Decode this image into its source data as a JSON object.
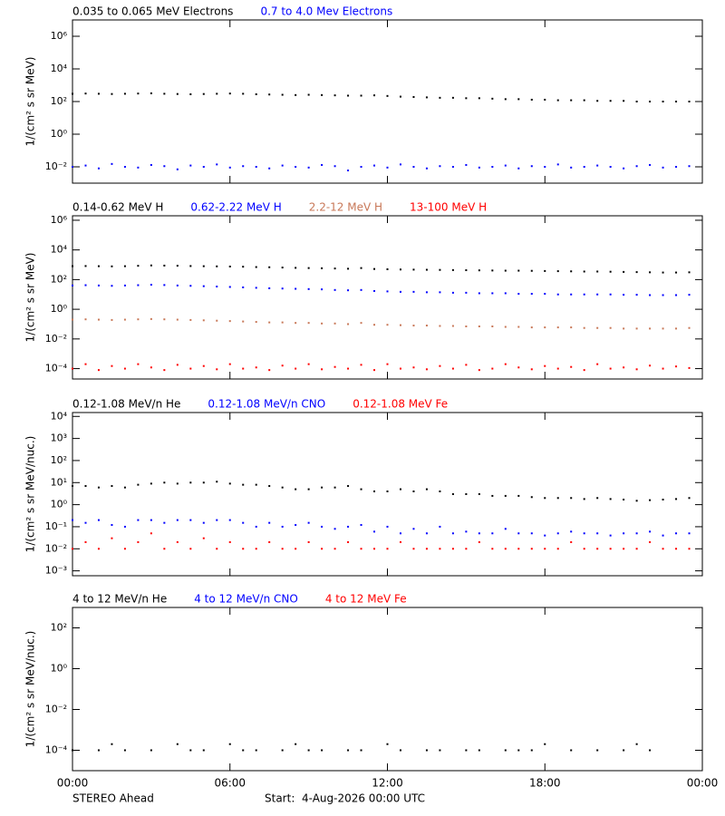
{
  "chart_data": [
    {
      "type": "scatter",
      "yscale": "log",
      "ylabel": "1/(cm² s sr MeV)",
      "x": [
        0,
        0.5,
        1,
        1.5,
        2,
        2.5,
        3,
        3.5,
        4,
        4.5,
        5,
        5.5,
        6,
        6.5,
        7,
        7.5,
        8,
        8.5,
        9,
        9.5,
        10,
        10.5,
        11,
        11.5,
        12,
        12.5,
        13,
        13.5,
        14,
        14.5,
        15,
        15.5,
        16,
        16.5,
        17,
        17.5,
        18,
        18.5,
        19,
        19.5,
        20,
        20.5,
        21,
        21.5,
        22,
        22.5,
        23,
        23.5
      ],
      "xlim": [
        0,
        24
      ],
      "xticks": [
        0,
        6,
        12,
        18,
        24
      ],
      "ylim": [
        0.001,
        10000000
      ],
      "yticks": [
        {
          "value": 0.01,
          "label": "10⁻²"
        },
        {
          "value": 1,
          "label": "10⁰"
        },
        {
          "value": 100,
          "label": "10²"
        },
        {
          "value": 10000,
          "label": "10⁴"
        },
        {
          "value": 1000000,
          "label": "10⁶"
        }
      ],
      "series": [
        {
          "name": "0.035 to 0.065 MeV Electrons",
          "color": "#000000",
          "values": [
            300,
            310,
            300,
            290,
            300,
            310,
            320,
            300,
            290,
            280,
            290,
            300,
            310,
            300,
            280,
            270,
            260,
            250,
            260,
            250,
            240,
            230,
            230,
            240,
            220,
            200,
            190,
            180,
            170,
            170,
            160,
            160,
            150,
            140,
            140,
            130,
            130,
            120,
            120,
            120,
            110,
            110,
            110,
            100,
            100,
            100,
            100,
            100
          ]
        },
        {
          "name": "0.7 to 4.0 Mev Electrons",
          "color": "#0000ff",
          "values": [
            0.01,
            0.012,
            0.008,
            0.015,
            0.01,
            0.009,
            0.013,
            0.011,
            0.007,
            0.012,
            0.01,
            0.014,
            0.009,
            0.011,
            0.01,
            0.008,
            0.012,
            0.01,
            0.009,
            0.013,
            0.011,
            0.006,
            0.01,
            0.012,
            0.009,
            0.014,
            0.01,
            0.008,
            0.011,
            0.01,
            0.013,
            0.009,
            0.01,
            0.012,
            0.008,
            0.011,
            0.01,
            0.014,
            0.009,
            0.01,
            0.012,
            0.01,
            0.008,
            0.011,
            0.013,
            0.009,
            0.01,
            0.011
          ]
        }
      ]
    },
    {
      "type": "scatter",
      "yscale": "log",
      "ylabel": "1/(cm² s sr MeV)",
      "x": [
        0,
        0.5,
        1,
        1.5,
        2,
        2.5,
        3,
        3.5,
        4,
        4.5,
        5,
        5.5,
        6,
        6.5,
        7,
        7.5,
        8,
        8.5,
        9,
        9.5,
        10,
        10.5,
        11,
        11.5,
        12,
        12.5,
        13,
        13.5,
        14,
        14.5,
        15,
        15.5,
        16,
        16.5,
        17,
        17.5,
        18,
        18.5,
        19,
        19.5,
        20,
        20.5,
        21,
        21.5,
        22,
        22.5,
        23,
        23.5
      ],
      "xlim": [
        0,
        24
      ],
      "xticks": [
        0,
        6,
        12,
        18,
        24
      ],
      "ylim": [
        2e-05,
        2000000
      ],
      "yticks": [
        {
          "value": 0.0001,
          "label": "10⁻⁴"
        },
        {
          "value": 0.01,
          "label": "10⁻²"
        },
        {
          "value": 1,
          "label": "10⁰"
        },
        {
          "value": 100,
          "label": "10²"
        },
        {
          "value": 10000,
          "label": "10⁴"
        },
        {
          "value": 1000000,
          "label": "10⁶"
        }
      ],
      "series": [
        {
          "name": "0.14-0.62 MeV H",
          "color": "#000000",
          "values": [
            800,
            820,
            800,
            780,
            800,
            850,
            900,
            880,
            860,
            820,
            800,
            780,
            760,
            740,
            700,
            680,
            650,
            620,
            600,
            580,
            560,
            540,
            600,
            520,
            500,
            480,
            470,
            460,
            450,
            440,
            430,
            420,
            410,
            400,
            400,
            390,
            380,
            370,
            360,
            350,
            350,
            340,
            330,
            320,
            310,
            300,
            300,
            310
          ]
        },
        {
          "name": "0.62-2.22 MeV H",
          "color": "#0000ff",
          "values": [
            40,
            42,
            40,
            38,
            40,
            42,
            45,
            43,
            40,
            38,
            36,
            34,
            32,
            30,
            28,
            26,
            25,
            24,
            23,
            22,
            20,
            19,
            20,
            17,
            16,
            15,
            15,
            14,
            14,
            13,
            13,
            12,
            12,
            12,
            11,
            11,
            11,
            10,
            10,
            10,
            10,
            10,
            9.5,
            9.5,
            9,
            9,
            9,
            9.5
          ]
        },
        {
          "name": "2.2-12 MeV H",
          "color": "#c87858",
          "values": [
            0.2,
            0.21,
            0.2,
            0.19,
            0.2,
            0.21,
            0.22,
            0.21,
            0.2,
            0.19,
            0.18,
            0.17,
            0.16,
            0.15,
            0.14,
            0.13,
            0.13,
            0.12,
            0.12,
            0.11,
            0.11,
            0.1,
            0.12,
            0.09,
            0.09,
            0.085,
            0.08,
            0.08,
            0.075,
            0.075,
            0.07,
            0.07,
            0.07,
            0.065,
            0.065,
            0.06,
            0.06,
            0.06,
            0.06,
            0.055,
            0.055,
            0.055,
            0.05,
            0.05,
            0.05,
            0.05,
            0.05,
            0.055
          ]
        },
        {
          "name": "13-100 MeV H",
          "color": "#ff0000",
          "values": [
            0.0001,
            0.0002,
            8e-05,
            0.00015,
            0.0001,
            0.0002,
            0.00012,
            8e-05,
            0.00018,
            0.0001,
            0.00015,
            9e-05,
            0.0002,
            0.0001,
            0.00012,
            8e-05,
            0.00016,
            0.0001,
            0.0002,
            9e-05,
            0.00013,
            0.0001,
            0.00018,
            8e-05,
            0.0002,
            0.0001,
            0.00012,
            9e-05,
            0.00015,
            0.0001,
            0.00018,
            8e-05,
            0.0001,
            0.0002,
            0.00012,
            9e-05,
            0.00015,
            0.0001,
            0.00013,
            8e-05,
            0.0002,
            0.0001,
            0.00012,
            9e-05,
            0.00016,
            0.0001,
            0.00014,
            0.00011
          ]
        }
      ]
    },
    {
      "type": "scatter",
      "yscale": "log",
      "ylabel": "1/(cm² s sr MeV/nuc.)",
      "x": [
        0,
        0.5,
        1,
        1.5,
        2,
        2.5,
        3,
        3.5,
        4,
        4.5,
        5,
        5.5,
        6,
        6.5,
        7,
        7.5,
        8,
        8.5,
        9,
        9.5,
        10,
        10.5,
        11,
        11.5,
        12,
        12.5,
        13,
        13.5,
        14,
        14.5,
        15,
        15.5,
        16,
        16.5,
        17,
        17.5,
        18,
        18.5,
        19,
        19.5,
        20,
        20.5,
        21,
        21.5,
        22,
        22.5,
        23,
        23.5
      ],
      "xlim": [
        0,
        24
      ],
      "xticks": [
        0,
        6,
        12,
        18,
        24
      ],
      "ylim": [
        0.0006,
        15000
      ],
      "yticks": [
        {
          "value": 0.001,
          "label": "10⁻³"
        },
        {
          "value": 0.01,
          "label": "10⁻²"
        },
        {
          "value": 0.1,
          "label": "10⁻¹"
        },
        {
          "value": 1,
          "label": "10⁰"
        },
        {
          "value": 10,
          "label": "10¹"
        },
        {
          "value": 100,
          "label": "10²"
        },
        {
          "value": 1000,
          "label": "10³"
        },
        {
          "value": 10000,
          "label": "10⁴"
        }
      ],
      "series": [
        {
          "name": "0.12-1.08 MeV/n He",
          "color": "#000000",
          "values": [
            7,
            7,
            6,
            7,
            6,
            8,
            9,
            10,
            9,
            10,
            10,
            11,
            9,
            8,
            8,
            7,
            6,
            5,
            5,
            6,
            6,
            7,
            5,
            4,
            4,
            5,
            4,
            5,
            4,
            3,
            3,
            3,
            2.5,
            2.5,
            2.5,
            2.2,
            2,
            2,
            2,
            1.8,
            2,
            1.8,
            1.7,
            1.5,
            1.6,
            1.7,
            1.8,
            2
          ]
        },
        {
          "name": "0.12-1.08 MeV/n CNO",
          "color": "#0000ff",
          "values": [
            0.2,
            0.15,
            0.2,
            0.12,
            0.1,
            0.2,
            0.2,
            0.15,
            0.2,
            0.2,
            0.15,
            0.2,
            0.2,
            0.15,
            0.1,
            0.15,
            0.1,
            0.12,
            0.15,
            0.1,
            0.08,
            0.1,
            0.12,
            0.06,
            0.1,
            0.05,
            0.08,
            0.05,
            0.1,
            0.05,
            0.06,
            0.05,
            0.05,
            0.08,
            0.05,
            0.05,
            0.04,
            0.05,
            0.06,
            0.05,
            0.05,
            0.04,
            0.05,
            0.05,
            0.06,
            0.04,
            0.05,
            0.05
          ]
        },
        {
          "name": "0.12-1.08 MeV Fe",
          "color": "#ff0000",
          "values": [
            0.01,
            0.02,
            0.01,
            0.03,
            0.01,
            0.02,
            0.05,
            0.01,
            0.02,
            0.01,
            0.03,
            0.01,
            0.02,
            0.01,
            0.01,
            0.02,
            0.01,
            0.01,
            0.02,
            0.01,
            0.01,
            0.02,
            0.01,
            0.01,
            0.01,
            0.02,
            0.01,
            0.01,
            0.01,
            0.01,
            0.01,
            0.02,
            0.01,
            0.01,
            0.01,
            0.01,
            0.01,
            0.01,
            0.02,
            0.01,
            0.01,
            0.01,
            0.01,
            0.01,
            0.02,
            0.01,
            0.01,
            0.01
          ]
        }
      ]
    },
    {
      "type": "scatter",
      "yscale": "log",
      "ylabel": "1/(cm² s sr MeV/nuc.)",
      "x": [
        0,
        0.5,
        1,
        1.5,
        2,
        2.5,
        3,
        3.5,
        4,
        4.5,
        5,
        5.5,
        6,
        6.5,
        7,
        7.5,
        8,
        8.5,
        9,
        9.5,
        10,
        10.5,
        11,
        11.5,
        12,
        12.5,
        13,
        13.5,
        14,
        14.5,
        15,
        15.5,
        16,
        16.5,
        17,
        17.5,
        18,
        18.5,
        19,
        19.5,
        20,
        20.5,
        21,
        21.5,
        22,
        22.5,
        23,
        23.5
      ],
      "xlim": [
        0,
        24
      ],
      "xticks": [
        {
          "value": 0,
          "label": "00:00"
        },
        {
          "value": 6,
          "label": "06:00"
        },
        {
          "value": 12,
          "label": "12:00"
        },
        {
          "value": 18,
          "label": "18:00"
        },
        {
          "value": 24,
          "label": "00:00"
        }
      ],
      "ylim": [
        1e-05,
        1000
      ],
      "yticks": [
        {
          "value": 0.0001,
          "label": "10⁻⁴"
        },
        {
          "value": 0.01,
          "label": "10⁻²"
        },
        {
          "value": 1,
          "label": "10⁰"
        },
        {
          "value": 100,
          "label": "10²"
        }
      ],
      "series": [
        {
          "name": "4 to 12 MeV/n He",
          "color": "#000000",
          "values": [
            0.0001,
            null,
            0.0001,
            0.0002,
            0.0001,
            null,
            0.0001,
            null,
            0.0002,
            0.0001,
            0.0001,
            null,
            0.0002,
            0.0001,
            0.0001,
            null,
            0.0001,
            0.0002,
            0.0001,
            0.0001,
            null,
            0.0001,
            0.0001,
            null,
            0.0002,
            0.0001,
            null,
            0.0001,
            0.0001,
            null,
            0.0001,
            0.0001,
            null,
            0.0001,
            0.0001,
            0.0001,
            0.0002,
            null,
            0.0001,
            null,
            0.0001,
            null,
            0.0001,
            0.0002,
            0.0001,
            null,
            null,
            null
          ]
        },
        {
          "name": "4 to 12 MeV/n CNO",
          "color": "#0000ff",
          "values": [
            null,
            null,
            null,
            null,
            null,
            null,
            null,
            null,
            null,
            null,
            null,
            null,
            null,
            null,
            null,
            null,
            null,
            null,
            null,
            null,
            null,
            null,
            null,
            null,
            null,
            null,
            null,
            null,
            null,
            null,
            null,
            null,
            null,
            null,
            null,
            null,
            null,
            null,
            null,
            null,
            null,
            null,
            null,
            null,
            null,
            null,
            null,
            null
          ]
        },
        {
          "name": "4 to 12 MeV Fe",
          "color": "#ff0000",
          "values": [
            null,
            null,
            null,
            null,
            null,
            null,
            null,
            null,
            null,
            null,
            null,
            null,
            null,
            null,
            null,
            null,
            null,
            null,
            null,
            null,
            null,
            null,
            null,
            null,
            null,
            null,
            null,
            null,
            null,
            null,
            null,
            null,
            null,
            null,
            null,
            null,
            null,
            null,
            null,
            null,
            null,
            null,
            null,
            null,
            null,
            null,
            null,
            null
          ]
        }
      ]
    }
  ],
  "footer": {
    "left": "STEREO Ahead",
    "center": "Start:  4-Aug-2026 00:00 UTC"
  }
}
